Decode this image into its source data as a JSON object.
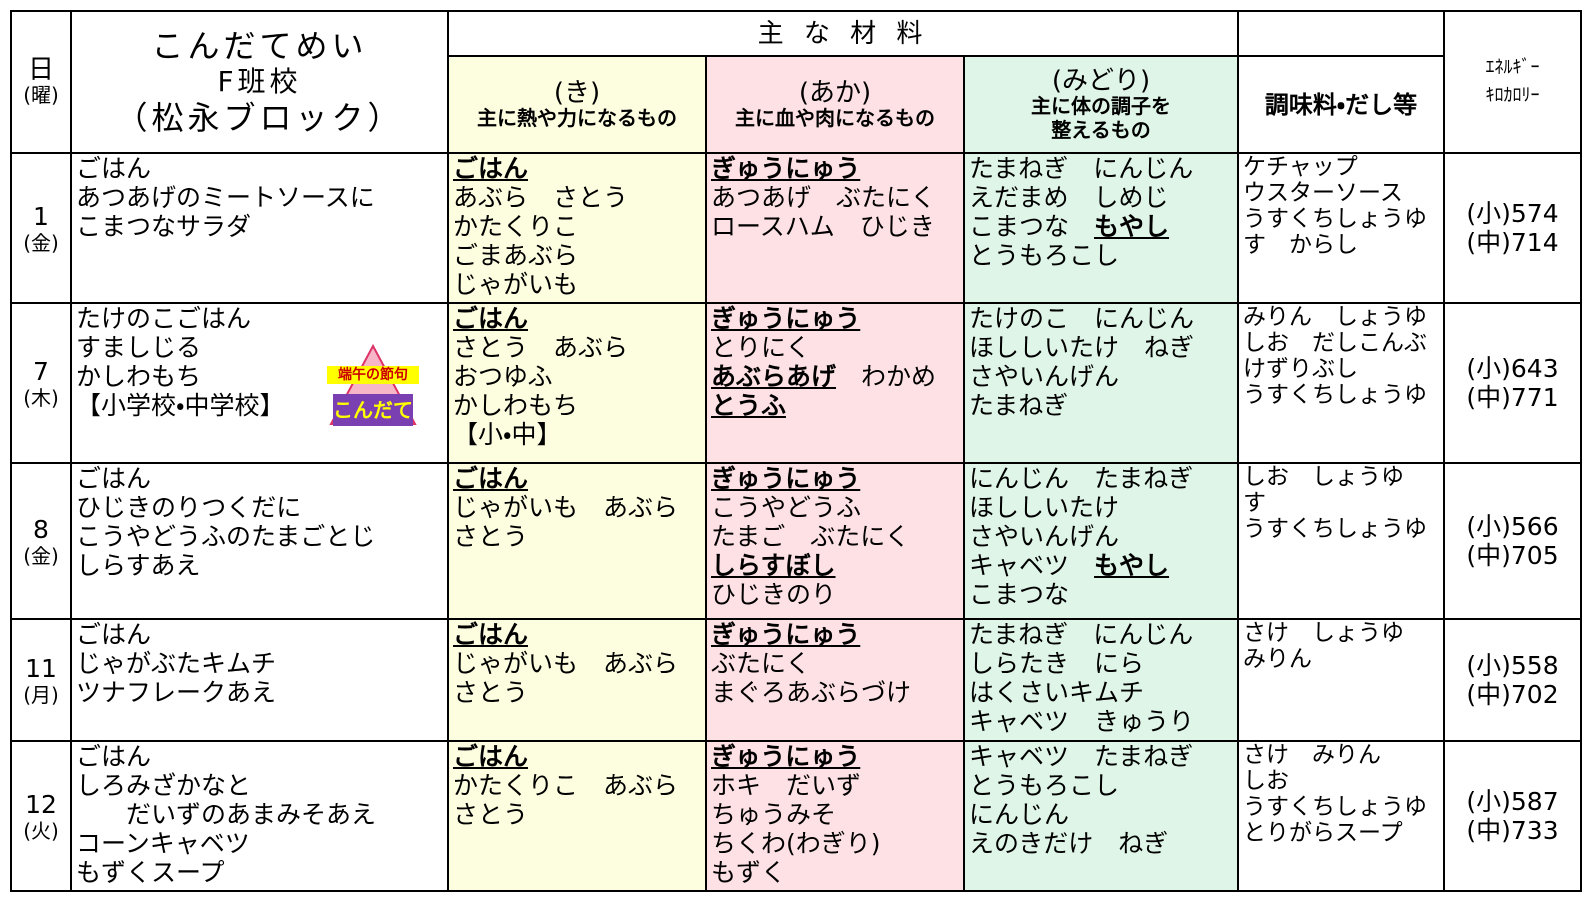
{
  "header": {
    "day": "日",
    "weekday": "(曜)",
    "menu_title": "こんだてめい",
    "school": "F班校",
    "block": "（松永ブロック）",
    "materials": "主 な 材 料",
    "ki": {
      "label": "(き)",
      "desc": "主に熱や力になるもの"
    },
    "aka": {
      "label": "(あか)",
      "desc": "主に血や肉になるもの"
    },
    "midori": {
      "label": "(みどり)",
      "desc": [
        "主に体の調子を",
        "整えるもの"
      ]
    },
    "seasoning": "調味料・だし等",
    "energy": [
      "ｴﾈﾙｷﾞｰ",
      "ｷﾛｶﾛﾘｰ"
    ]
  },
  "rows": [
    {
      "day": "1",
      "weekday": "(金)",
      "menu": [
        "ごはん",
        "あつあげのミートソースに",
        "こまつなサラダ"
      ],
      "ki": [
        [
          {
            "text": "ごはん",
            "bold": true
          }
        ],
        "あぶら　さとう",
        "かたくりこ",
        "ごまあぶら",
        "じゃがいも"
      ],
      "aka": [
        [
          {
            "text": "ぎゅうにゅう",
            "bold": true
          }
        ],
        "あつあげ　ぶたにく",
        "ロースハム　ひじき"
      ],
      "midori": [
        "たまねぎ　にんじん",
        "えだまめ　しめじ",
        [
          "こまつな　",
          {
            "text": "もやし",
            "bold": true
          }
        ],
        "とうもろこし"
      ],
      "seasoning": [
        "ケチャップ",
        "ウスターソース",
        "うすくちしょうゆ",
        "す　からし"
      ],
      "energy": [
        "(小)574",
        "(中)714"
      ]
    },
    {
      "day": "7",
      "weekday": "(木)",
      "menu": [
        "たけのこごはん",
        "すましじる",
        "かしわもち",
        "【小学校・中学校】"
      ],
      "badge": [
        "端午の節句",
        "こんだて"
      ],
      "ki": [
        [
          {
            "text": "ごはん",
            "bold": true
          }
        ],
        "さとう　あぶら",
        "おつゆふ",
        "かしわもち",
        "【小・中】"
      ],
      "aka": [
        [
          {
            "text": "ぎゅうにゅう",
            "bold": true
          }
        ],
        "とりにく",
        [
          {
            "text": "あぶらあげ",
            "bold": true
          },
          "　わかめ"
        ],
        [
          {
            "text": "とうふ",
            "bold": true
          }
        ]
      ],
      "midori": [
        "たけのこ　にんじん",
        "ほししいたけ　ねぎ",
        "さやいんげん",
        "たまねぎ"
      ],
      "seasoning": [
        "みりん　しょうゆ",
        "しお　だしこんぶ",
        "けずりぶし",
        "うすくちしょうゆ"
      ],
      "energy": [
        "(小)643",
        "(中)771"
      ]
    },
    {
      "day": "8",
      "weekday": "(金)",
      "menu": [
        "ごはん",
        "ひじきのりつくだに",
        "こうやどうふのたまごとじ",
        "しらすあえ"
      ],
      "ki": [
        [
          {
            "text": "ごはん",
            "bold": true
          }
        ],
        "じゃがいも　あぶら",
        "さとう"
      ],
      "aka": [
        [
          {
            "text": "ぎゅうにゅう",
            "bold": true
          }
        ],
        "こうやどうふ",
        "たまご　ぶたにく",
        [
          {
            "text": "しらすぼし",
            "bold": true
          }
        ],
        "ひじきのり"
      ],
      "midori": [
        "にんじん　たまねぎ",
        "ほししいたけ",
        "さやいんげん",
        [
          "キャベツ　",
          {
            "text": "もやし",
            "bold": true
          }
        ],
        "こまつな"
      ],
      "seasoning": [
        "しお　しょうゆ",
        "す",
        "うすくちしょうゆ"
      ],
      "energy": [
        "(小)566",
        "(中)705"
      ]
    },
    {
      "day": "11",
      "weekday": "(月)",
      "menu": [
        "ごはん",
        "じゃがぶたキムチ",
        "ツナフレークあえ"
      ],
      "ki": [
        [
          {
            "text": "ごはん",
            "bold": true
          }
        ],
        "じゃがいも　あぶら",
        "さとう"
      ],
      "aka": [
        [
          {
            "text": "ぎゅうにゅう",
            "bold": true
          }
        ],
        "ぶたにく",
        "まぐろあぶらづけ"
      ],
      "midori": [
        "たまねぎ　にんじん",
        "しらたき　にら",
        "はくさいキムチ",
        "キャベツ　きゅうり"
      ],
      "seasoning": [
        "さけ　しょうゆ",
        "みりん"
      ],
      "energy": [
        "(小)558",
        "(中)702"
      ]
    },
    {
      "day": "12",
      "weekday": "(火)",
      "menu": [
        "ごはん",
        "しろみざかなと",
        "　　だいずのあまみそあえ",
        "コーンキャベツ",
        "もずくスープ"
      ],
      "ki": [
        [
          {
            "text": "ごはん",
            "bold": true
          }
        ],
        "かたくりこ　あぶら",
        "さとう"
      ],
      "aka": [
        [
          {
            "text": "ぎゅうにゅう",
            "bold": true
          }
        ],
        "ホキ　だいず",
        "ちゅうみそ",
        "ちくわ(わぎり)",
        "もずく"
      ],
      "midori": [
        "キャベツ　たまねぎ",
        "とうもろこし",
        "にんじん",
        "えのきだけ　ねぎ"
      ],
      "seasoning": [
        "さけ　みりん",
        "しお",
        "うすくちしょうゆ",
        "とりがらスープ"
      ],
      "energy": [
        "(小)587",
        "(中)733"
      ]
    }
  ]
}
